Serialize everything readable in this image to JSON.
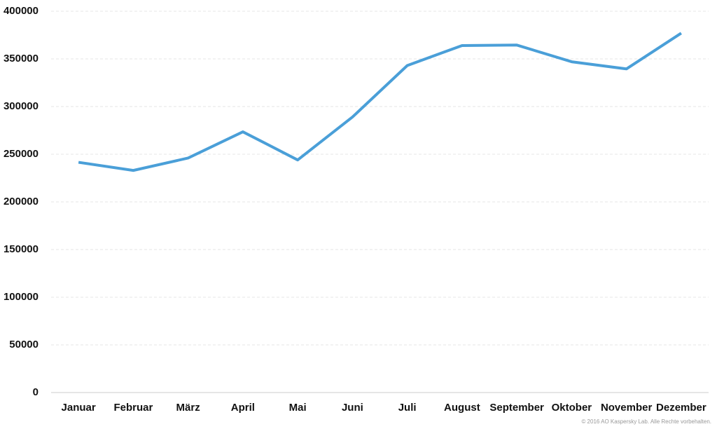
{
  "chart_data": {
    "type": "line",
    "categories": [
      "Januar",
      "Februar",
      "März",
      "April",
      "Mai",
      "Juni",
      "Juli",
      "August",
      "September",
      "Oktober",
      "November",
      "Dezember"
    ],
    "series": [
      {
        "color": "#4a9fd8",
        "values": [
          241500,
          233000,
          246000,
          273500,
          244000,
          289000,
          343000,
          364000,
          364500,
          347000,
          339500,
          377000
        ]
      }
    ],
    "ylim": [
      0,
      400000
    ],
    "yticks": [
      0,
      50000,
      100000,
      150000,
      200000,
      250000,
      300000,
      350000,
      400000
    ],
    "grid": true,
    "footnote": "© 2016 AO Kaspersky Lab. Alle Rechte vorbehalten."
  }
}
